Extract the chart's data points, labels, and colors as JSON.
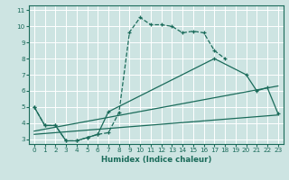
{
  "xlabel": "Humidex (Indice chaleur)",
  "bg_color": "#cde4e2",
  "grid_color": "#ffffff",
  "line_color": "#1a6b5a",
  "xlim": [
    -0.5,
    23.5
  ],
  "ylim": [
    2.7,
    11.3
  ],
  "xticks": [
    0,
    1,
    2,
    3,
    4,
    5,
    6,
    7,
    8,
    9,
    10,
    11,
    12,
    13,
    14,
    15,
    16,
    17,
    18,
    19,
    20,
    21,
    22,
    23
  ],
  "yticks": [
    3,
    4,
    5,
    6,
    7,
    8,
    9,
    10,
    11
  ],
  "line1_x": [
    0,
    1,
    2,
    3,
    4,
    5,
    6,
    7,
    8,
    9,
    10,
    11,
    12,
    13,
    14,
    15,
    16,
    17,
    18
  ],
  "line1_y": [
    5.0,
    3.85,
    3.85,
    2.9,
    2.9,
    3.1,
    3.3,
    3.4,
    4.65,
    9.65,
    10.55,
    10.1,
    10.1,
    10.0,
    9.6,
    9.7,
    9.6,
    8.5,
    8.0
  ],
  "line2_x": [
    0,
    1,
    2,
    3,
    4,
    5,
    6,
    7,
    17,
    20,
    21,
    22,
    23
  ],
  "line2_y": [
    5.0,
    3.85,
    3.85,
    2.9,
    2.9,
    3.1,
    3.3,
    4.7,
    8.0,
    7.0,
    6.0,
    6.2,
    4.6
  ],
  "line3_x": [
    0,
    23
  ],
  "line3_y": [
    3.5,
    6.3
  ],
  "line4_x": [
    0,
    23
  ],
  "line4_y": [
    3.3,
    4.5
  ]
}
